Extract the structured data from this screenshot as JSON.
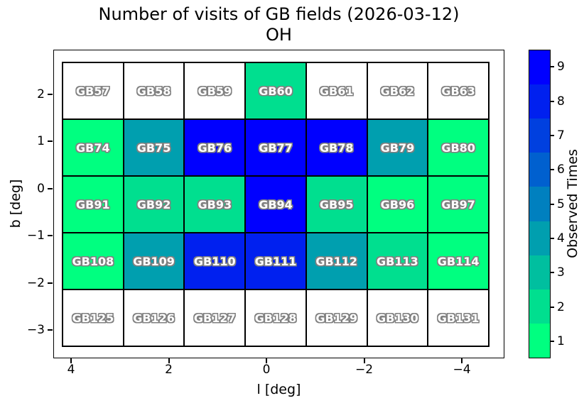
{
  "chart_data": {
    "type": "heatmap",
    "title": "Number of visits of GB fields (2026-03-12)",
    "subtitle": "OH",
    "xlabel": "l [deg]",
    "ylabel": "b [deg]",
    "x_tick_labels": [
      "4",
      "2",
      "0",
      "−2",
      "−4"
    ],
    "y_tick_labels": [
      "2",
      "1",
      "0",
      "−1",
      "−2",
      "−3"
    ],
    "xlim": [
      4.5,
      -4.5
    ],
    "ylim": [
      -3.6,
      2.7
    ],
    "grid_shape": {
      "rows": 5,
      "cols": 7
    },
    "colorbar": {
      "label": "Observed Times",
      "tick_labels_top_to_bottom": [
        "9",
        "8",
        "7",
        "6",
        "5",
        "4",
        "3",
        "2",
        "1"
      ],
      "min": 1,
      "max": 9
    },
    "colormap": {
      "0": "#FFFFFF",
      "1": "#00FF80",
      "2": "#00DF8F",
      "3": "#00BF9F",
      "4": "#009FAF",
      "5": "#0080BF",
      "6": "#0060CF",
      "7": "#0040DF",
      "8": "#0020EF",
      "9": "#0000FF"
    },
    "rows": [
      {
        "cells": [
          {
            "field": "GB57",
            "visits": 0
          },
          {
            "field": "GB58",
            "visits": 0
          },
          {
            "field": "GB59",
            "visits": 0
          },
          {
            "field": "GB60",
            "visits": 2
          },
          {
            "field": "GB61",
            "visits": 0
          },
          {
            "field": "GB62",
            "visits": 0
          },
          {
            "field": "GB63",
            "visits": 0
          }
        ]
      },
      {
        "cells": [
          {
            "field": "GB74",
            "visits": 1
          },
          {
            "field": "GB75",
            "visits": 4
          },
          {
            "field": "GB76",
            "visits": 9
          },
          {
            "field": "GB77",
            "visits": 9
          },
          {
            "field": "GB78",
            "visits": 9
          },
          {
            "field": "GB79",
            "visits": 4
          },
          {
            "field": "GB80",
            "visits": 1
          }
        ]
      },
      {
        "cells": [
          {
            "field": "GB91",
            "visits": 1
          },
          {
            "field": "GB92",
            "visits": 2
          },
          {
            "field": "GB93",
            "visits": 2
          },
          {
            "field": "GB94",
            "visits": 9
          },
          {
            "field": "GB95",
            "visits": 2
          },
          {
            "field": "GB96",
            "visits": 1
          },
          {
            "field": "GB97",
            "visits": 1
          }
        ]
      },
      {
        "cells": [
          {
            "field": "GB108",
            "visits": 1
          },
          {
            "field": "GB109",
            "visits": 4
          },
          {
            "field": "GB110",
            "visits": 8
          },
          {
            "field": "GB111",
            "visits": 8
          },
          {
            "field": "GB112",
            "visits": 4
          },
          {
            "field": "GB113",
            "visits": 2
          },
          {
            "field": "GB114",
            "visits": 1
          }
        ]
      },
      {
        "cells": [
          {
            "field": "GB125",
            "visits": 0
          },
          {
            "field": "GB126",
            "visits": 0
          },
          {
            "field": "GB127",
            "visits": 0
          },
          {
            "field": "GB128",
            "visits": 0
          },
          {
            "field": "GB129",
            "visits": 0
          },
          {
            "field": "GB130",
            "visits": 0
          },
          {
            "field": "GB131",
            "visits": 0
          }
        ]
      }
    ]
  }
}
